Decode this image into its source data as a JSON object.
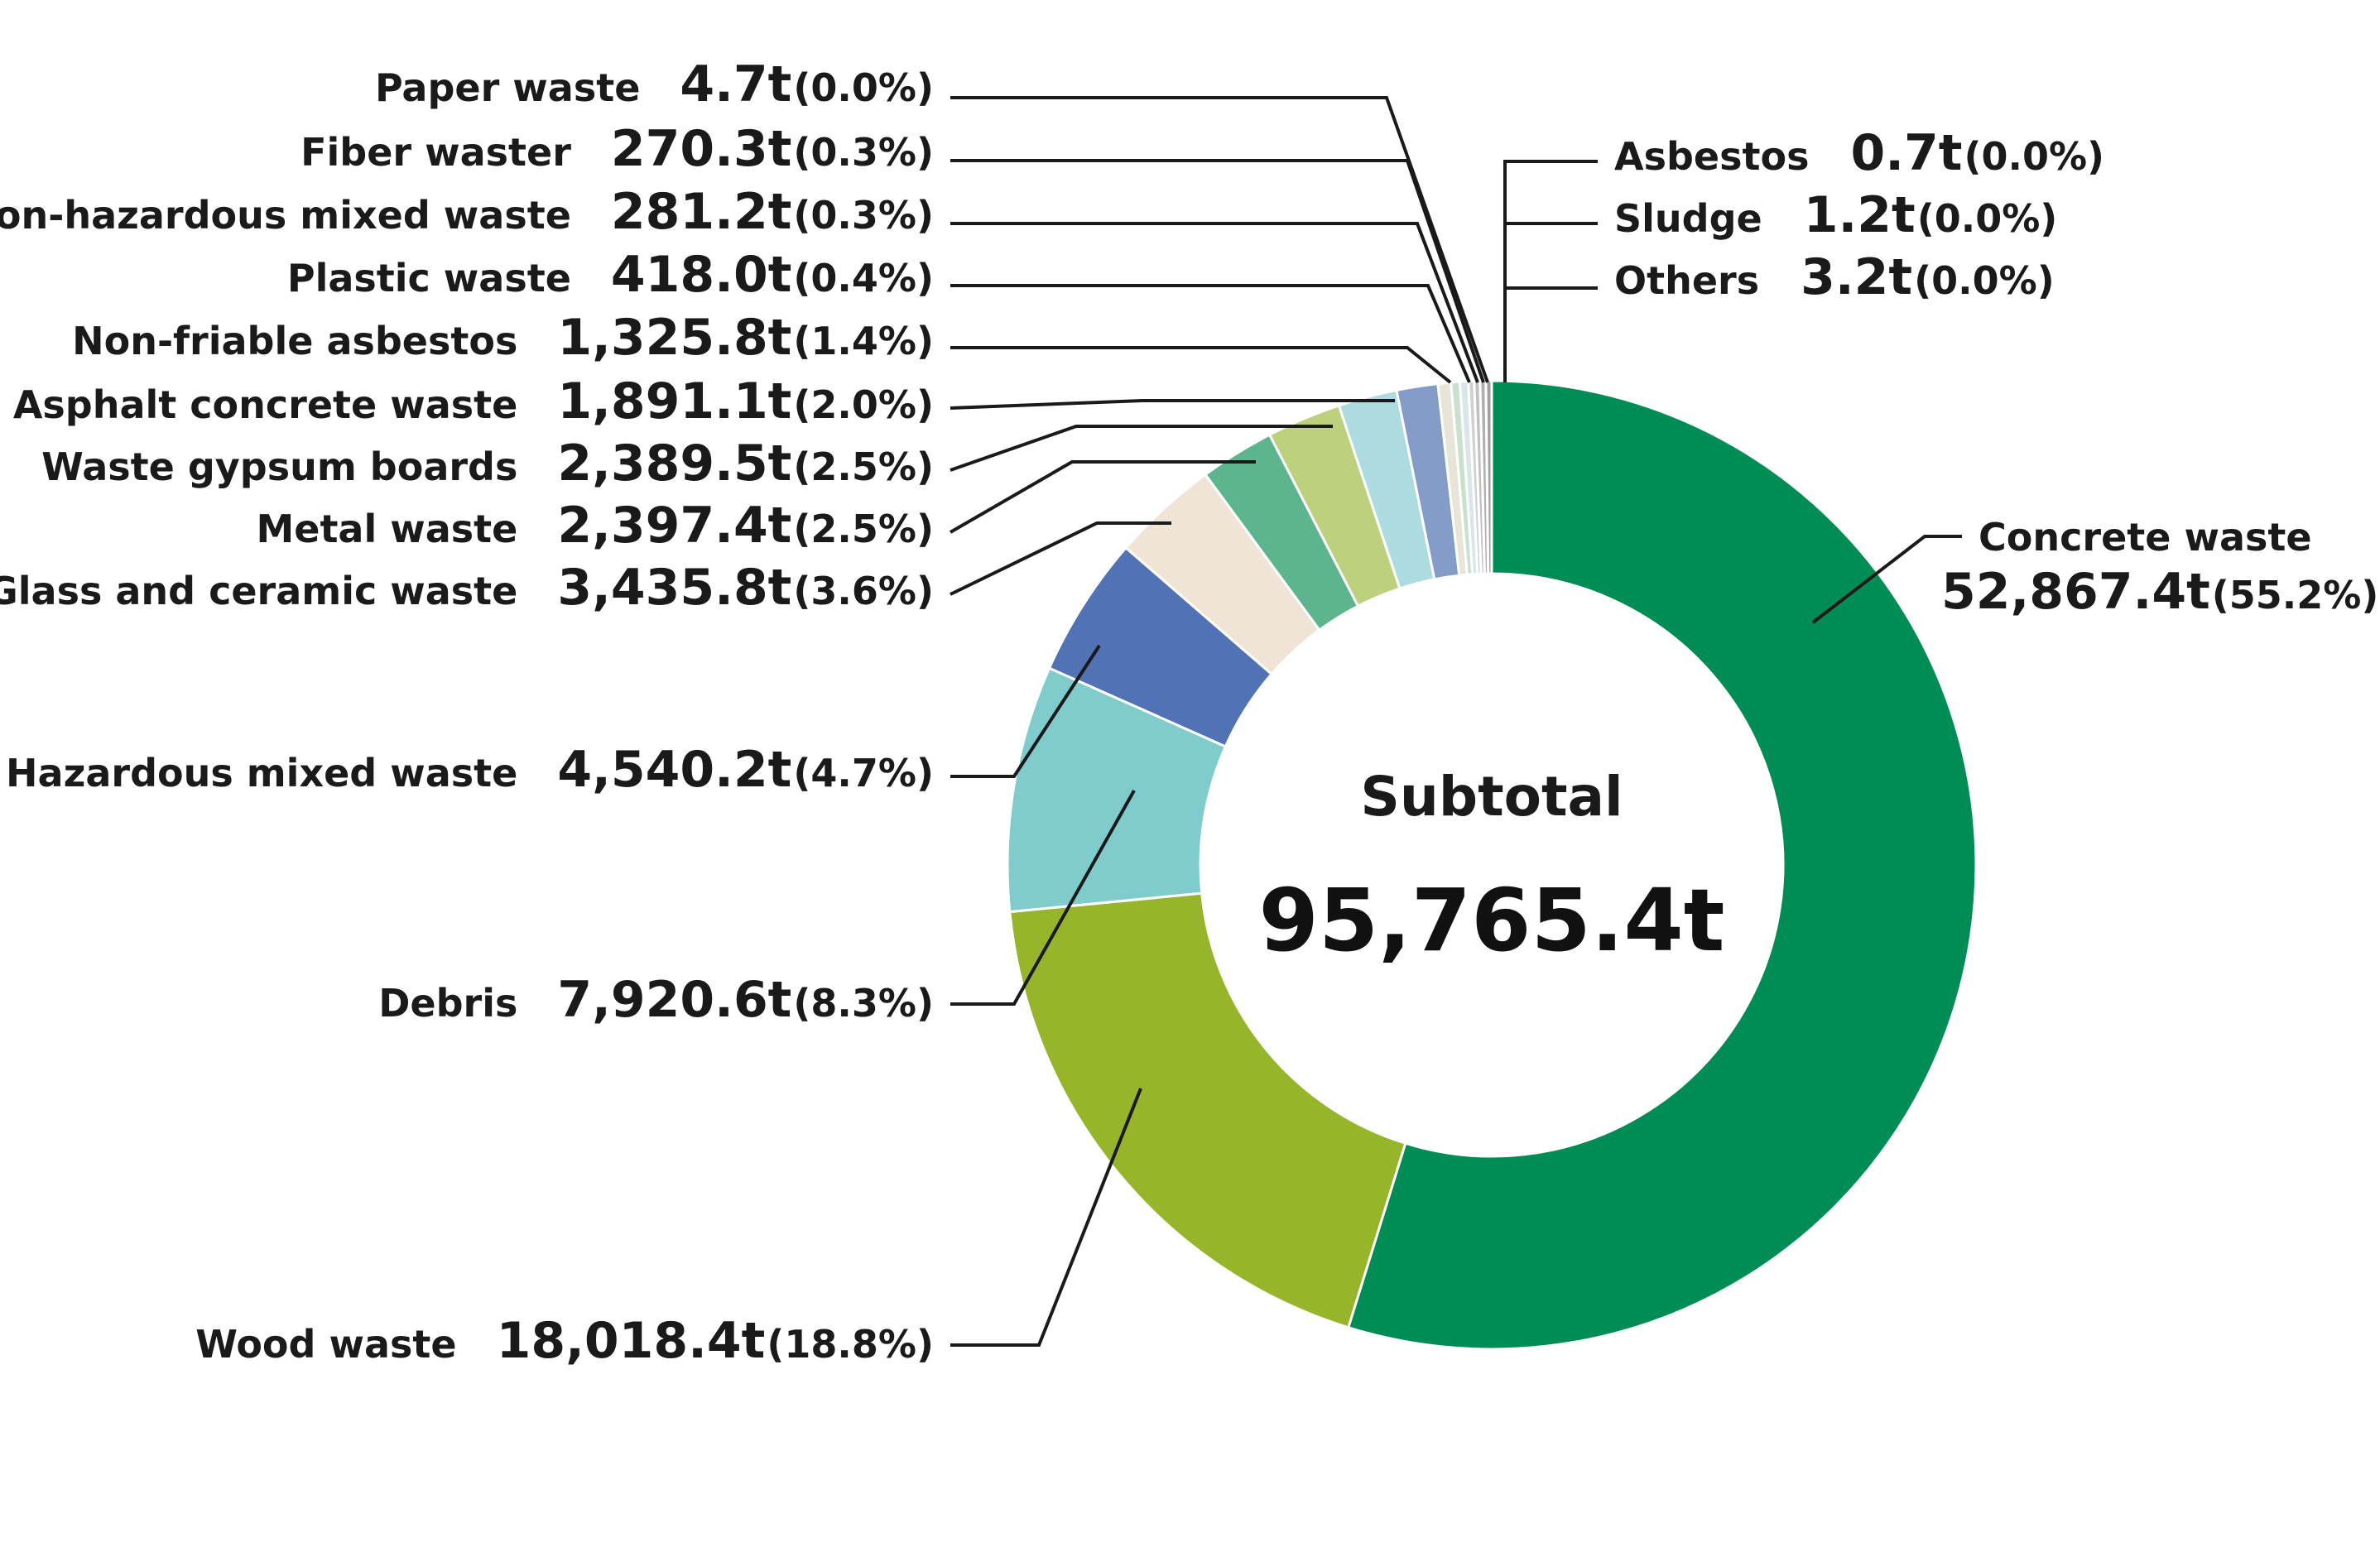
{
  "chart_data": {
    "type": "pie",
    "variant": "donut",
    "center": {
      "title": "Subtotal",
      "total": "95,765.4t"
    },
    "slices": [
      {
        "name": "Concrete waste",
        "value": 52867.4,
        "value_label": "52,867.4t",
        "percent_label": "(55.2%)",
        "color": "#008C55"
      },
      {
        "name": "Wood waste",
        "value": 18018.4,
        "value_label": "18,018.4t",
        "percent_label": "(18.8%)",
        "color": "#97B52B"
      },
      {
        "name": "Debris",
        "value": 7920.6,
        "value_label": "7,920.6t",
        "percent_label": "(8.3%)",
        "color": "#80CCCC"
      },
      {
        "name": "Hazardous mixed waste",
        "value": 4540.2,
        "value_label": "4,540.2t",
        "percent_label": "(4.7%)",
        "color": "#5272B6"
      },
      {
        "name": "Glass and ceramic waste",
        "value": 3435.8,
        "value_label": "3,435.8t",
        "percent_label": "(3.6%)",
        "color": "#F0E4D6"
      },
      {
        "name": "Metal waste",
        "value": 2397.4,
        "value_label": "2,397.4t",
        "percent_label": "(2.5%)",
        "color": "#5DB58D"
      },
      {
        "name": "Waste gypsum boards",
        "value": 2389.5,
        "value_label": "2,389.5t",
        "percent_label": "(2.5%)",
        "color": "#BCD07D"
      },
      {
        "name": "Asphalt concrete waste",
        "value": 1891.1,
        "value_label": "1,891.1t",
        "percent_label": "(2.0%)",
        "color": "#ACDCE0"
      },
      {
        "name": "Non-friable asbestos",
        "value": 1325.8,
        "value_label": "1,325.8t",
        "percent_label": "(1.4%)",
        "color": "#839DC8"
      },
      {
        "name": "Plastic waste",
        "value": 418.0,
        "value_label": "418.0t",
        "percent_label": "(0.4%)",
        "color": "#E9E4D8"
      },
      {
        "name": "Non-hazardous mixed waste",
        "value": 281.2,
        "value_label": "281.2t",
        "percent_label": "(0.3%)",
        "color": "#C8E0CC"
      },
      {
        "name": "Fiber waster",
        "value": 270.3,
        "value_label": "270.3t",
        "percent_label": "(0.3%)",
        "color": "#D8E6EA"
      },
      {
        "name": "Paper waste",
        "value": 4.7,
        "value_label": "4.7t",
        "percent_label": "(0.0%)",
        "color": "#D0D0D0"
      },
      {
        "name": "Others",
        "value": 3.2,
        "value_label": "3.2t",
        "percent_label": "(0.0%)",
        "color": "#C0C0C0"
      },
      {
        "name": "Sludge",
        "value": 1.2,
        "value_label": "1.2t",
        "percent_label": "(0.0%)",
        "color": "#B0B0B0"
      },
      {
        "name": "Asbestos",
        "value": 0.7,
        "value_label": "0.7t",
        "percent_label": "(0.0%)",
        "color": "#A0A0A0"
      }
    ]
  }
}
